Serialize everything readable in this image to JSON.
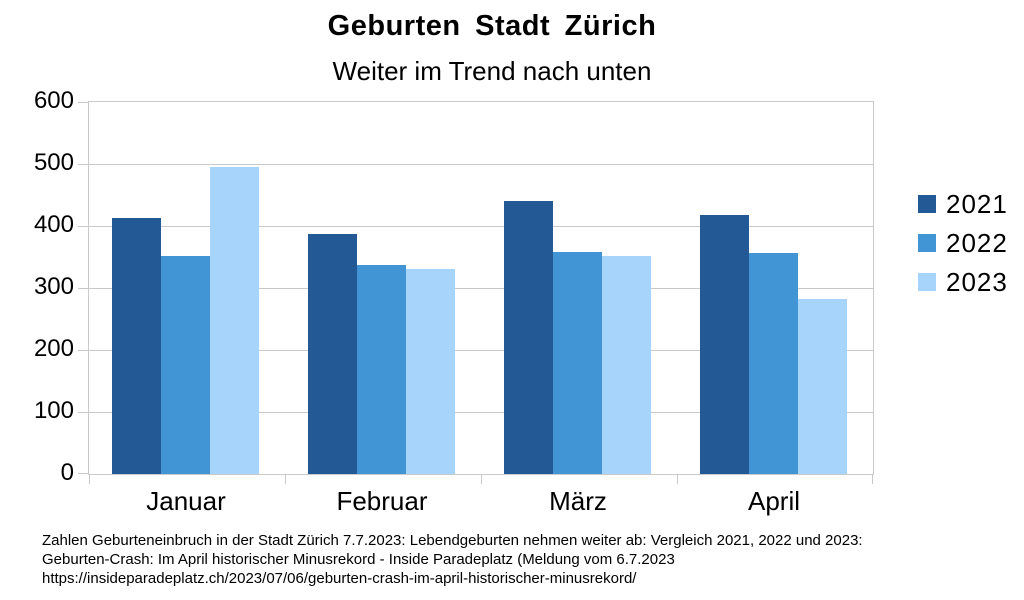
{
  "chart_data": {
    "type": "bar",
    "title": "Geburten Stadt Zürich",
    "subtitle": "Weiter im Trend nach unten",
    "categories": [
      "Januar",
      "Februar",
      "März",
      "April"
    ],
    "series": [
      {
        "name": "2021",
        "color": "#235a96",
        "values": [
          413,
          387,
          441,
          418
        ]
      },
      {
        "name": "2022",
        "color": "#4295d5",
        "values": [
          351,
          337,
          358,
          357
        ]
      },
      {
        "name": "2023",
        "color": "#a6d4fa",
        "values": [
          495,
          331,
          352,
          283
        ]
      }
    ],
    "xlabel": "",
    "ylabel": "",
    "ylim": [
      0,
      600
    ],
    "ytick_step": 100,
    "grid": "horizontal",
    "gridline_color": "#c9c9c9",
    "legend_position": "right"
  },
  "footer": {
    "lines": [
      "Zahlen Geburteneinbruch in der Stadt Zürich 7.7.2023: Lebendgeburten nehmen weiter ab: Vergleich 2021, 2022 und 2023:",
      "Geburten-Crash: Im April historischer Minusrekord - Inside Paradeplatz (Meldung vom 6.7.2023",
      "https://insideparadeplatz.ch/2023/07/06/geburten-crash-im-april-historischer-minusrekord/"
    ]
  }
}
